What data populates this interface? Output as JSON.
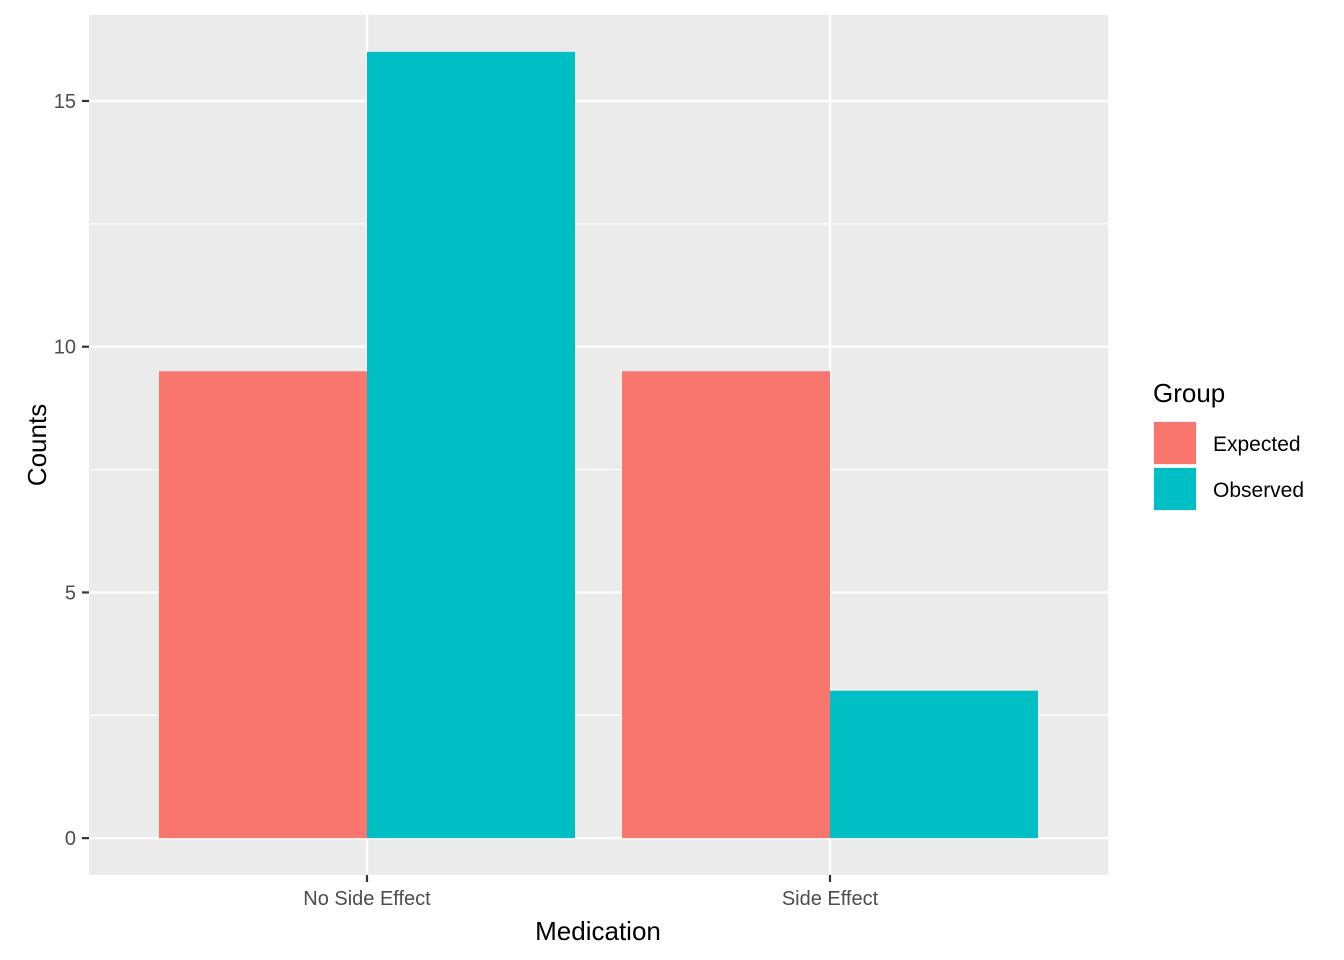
{
  "chart_data": {
    "type": "bar",
    "title": "",
    "xlabel": "Medication",
    "ylabel": "Counts",
    "categories": [
      "No Side Effect",
      "Side Effect"
    ],
    "series": [
      {
        "name": "Expected",
        "values": [
          9.5,
          9.5
        ],
        "color": "#F8766D"
      },
      {
        "name": "Observed",
        "values": [
          16,
          3
        ],
        "color": "#00BFC4"
      }
    ],
    "ylim": [
      -0.75,
      16.75
    ],
    "yticks": [
      0,
      5,
      10,
      15
    ],
    "y_minor_ticks": [
      2.5,
      7.5,
      12.5
    ],
    "grid": true,
    "legend": {
      "title": "Group",
      "position": "right"
    },
    "panel_background": "#EBEBEB",
    "grid_color": "#FFFFFF"
  }
}
